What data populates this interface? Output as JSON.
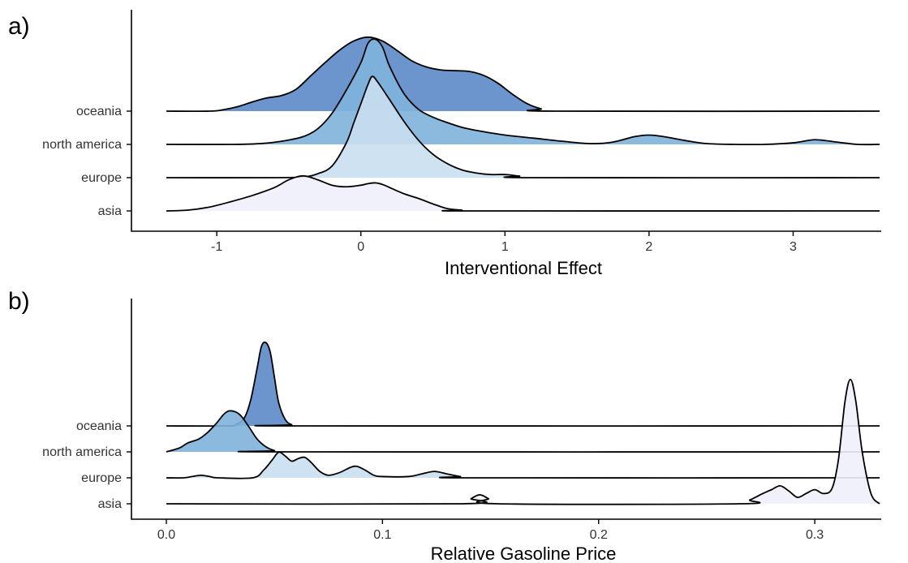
{
  "chart_data": [
    {
      "panel_label": "a)",
      "type": "ridgeline",
      "xlabel": "Interventional Effect",
      "xlim": [
        -1.35,
        3.6
      ],
      "xticks": [
        -1,
        0,
        1,
        2,
        3
      ],
      "xtick_labels": [
        "-1",
        "0",
        "1",
        "2",
        "3"
      ],
      "grid": false,
      "categories": [
        "asia",
        "europe",
        "north america",
        "oceania"
      ],
      "series": [
        {
          "category": "asia",
          "color": "#eef0fb",
          "points": [
            [
              -1.35,
              0
            ],
            [
              -1.2,
              0.01
            ],
            [
              -1.05,
              0.05
            ],
            [
              -0.9,
              0.12
            ],
            [
              -0.75,
              0.2
            ],
            [
              -0.6,
              0.3
            ],
            [
              -0.5,
              0.4
            ],
            [
              -0.4,
              0.45
            ],
            [
              -0.3,
              0.4
            ],
            [
              -0.2,
              0.33
            ],
            [
              -0.1,
              0.31
            ],
            [
              0.0,
              0.33
            ],
            [
              0.05,
              0.35
            ],
            [
              0.1,
              0.36
            ],
            [
              0.15,
              0.34
            ],
            [
              0.2,
              0.3
            ],
            [
              0.3,
              0.22
            ],
            [
              0.4,
              0.16
            ],
            [
              0.5,
              0.09
            ],
            [
              0.6,
              0.03
            ],
            [
              0.7,
              0.01
            ],
            [
              0.8,
              0
            ],
            [
              3.6,
              0
            ]
          ]
        },
        {
          "category": "europe",
          "color": "#c9dff0",
          "points": [
            [
              -1.35,
              0
            ],
            [
              -0.6,
              0
            ],
            [
              -0.4,
              0.01
            ],
            [
              -0.3,
              0.05
            ],
            [
              -0.2,
              0.15
            ],
            [
              -0.1,
              0.45
            ],
            [
              -0.05,
              0.7
            ],
            [
              0.0,
              0.95
            ],
            [
              0.05,
              1.2
            ],
            [
              0.08,
              1.3
            ],
            [
              0.12,
              1.22
            ],
            [
              0.2,
              1.0
            ],
            [
              0.3,
              0.72
            ],
            [
              0.4,
              0.48
            ],
            [
              0.5,
              0.3
            ],
            [
              0.6,
              0.18
            ],
            [
              0.7,
              0.1
            ],
            [
              0.8,
              0.06
            ],
            [
              0.9,
              0.04
            ],
            [
              1.0,
              0.04
            ],
            [
              1.1,
              0.02
            ],
            [
              1.2,
              0
            ],
            [
              3.6,
              0
            ]
          ]
        },
        {
          "category": "north america",
          "color": "#80b3db",
          "points": [
            [
              -1.35,
              0
            ],
            [
              -0.9,
              0
            ],
            [
              -0.7,
              0.01
            ],
            [
              -0.55,
              0.04
            ],
            [
              -0.4,
              0.1
            ],
            [
              -0.3,
              0.2
            ],
            [
              -0.2,
              0.4
            ],
            [
              -0.1,
              0.7
            ],
            [
              0.0,
              1.05
            ],
            [
              0.05,
              1.3
            ],
            [
              0.1,
              1.35
            ],
            [
              0.15,
              1.25
            ],
            [
              0.2,
              1.0
            ],
            [
              0.3,
              0.65
            ],
            [
              0.4,
              0.45
            ],
            [
              0.5,
              0.35
            ],
            [
              0.6,
              0.28
            ],
            [
              0.7,
              0.22
            ],
            [
              0.8,
              0.18
            ],
            [
              1.0,
              0.12
            ],
            [
              1.2,
              0.08
            ],
            [
              1.4,
              0.04
            ],
            [
              1.6,
              0.01
            ],
            [
              1.75,
              0.03
            ],
            [
              1.9,
              0.1
            ],
            [
              2.0,
              0.12
            ],
            [
              2.1,
              0.1
            ],
            [
              2.25,
              0.05
            ],
            [
              2.4,
              0.01
            ],
            [
              2.6,
              0
            ],
            [
              2.8,
              0
            ],
            [
              3.0,
              0.02
            ],
            [
              3.15,
              0.06
            ],
            [
              3.3,
              0.03
            ],
            [
              3.45,
              0
            ],
            [
              3.6,
              0
            ]
          ]
        },
        {
          "category": "oceania",
          "color": "#5b8ac6",
          "points": [
            [
              -1.35,
              0
            ],
            [
              -1.05,
              0
            ],
            [
              -0.95,
              0.02
            ],
            [
              -0.85,
              0.06
            ],
            [
              -0.75,
              0.12
            ],
            [
              -0.65,
              0.17
            ],
            [
              -0.55,
              0.2
            ],
            [
              -0.45,
              0.28
            ],
            [
              -0.35,
              0.45
            ],
            [
              -0.25,
              0.62
            ],
            [
              -0.15,
              0.78
            ],
            [
              -0.05,
              0.9
            ],
            [
              0.05,
              0.95
            ],
            [
              0.15,
              0.9
            ],
            [
              0.25,
              0.78
            ],
            [
              0.35,
              0.65
            ],
            [
              0.45,
              0.57
            ],
            [
              0.55,
              0.53
            ],
            [
              0.65,
              0.52
            ],
            [
              0.75,
              0.51
            ],
            [
              0.85,
              0.46
            ],
            [
              0.95,
              0.36
            ],
            [
              1.05,
              0.22
            ],
            [
              1.15,
              0.1
            ],
            [
              1.25,
              0.03
            ],
            [
              1.35,
              0
            ],
            [
              3.6,
              0
            ]
          ]
        }
      ]
    },
    {
      "panel_label": "b)",
      "type": "ridgeline",
      "xlabel": "Relative Gasoline Price",
      "xlim": [
        0.0,
        0.33
      ],
      "xticks": [
        0.0,
        0.1,
        0.2,
        0.3
      ],
      "xtick_labels": [
        "0.0",
        "0.1",
        "0.2",
        "0.3"
      ],
      "grid": false,
      "categories": [
        "asia",
        "europe",
        "north america",
        "oceania"
      ],
      "series": [
        {
          "category": "asia",
          "color": "#eef0fb",
          "points": [
            [
              0.0,
              0
            ],
            [
              0.137,
              0
            ],
            [
              0.141,
              0.04
            ],
            [
              0.145,
              0.07
            ],
            [
              0.149,
              0.04
            ],
            [
              0.153,
              0
            ],
            [
              0.265,
              0
            ],
            [
              0.27,
              0.03
            ],
            [
              0.276,
              0.08
            ],
            [
              0.28,
              0.11
            ],
            [
              0.284,
              0.14
            ],
            [
              0.288,
              0.1
            ],
            [
              0.292,
              0.05
            ],
            [
              0.296,
              0.08
            ],
            [
              0.3,
              0.11
            ],
            [
              0.304,
              0.08
            ],
            [
              0.308,
              0.12
            ],
            [
              0.311,
              0.35
            ],
            [
              0.314,
              0.8
            ],
            [
              0.3165,
              0.97
            ],
            [
              0.319,
              0.8
            ],
            [
              0.322,
              0.4
            ],
            [
              0.326,
              0.08
            ],
            [
              0.33,
              0
            ]
          ]
        },
        {
          "category": "europe",
          "color": "#c9dff0",
          "points": [
            [
              0.0,
              0
            ],
            [
              0.008,
              0
            ],
            [
              0.012,
              0.01
            ],
            [
              0.016,
              0.02
            ],
            [
              0.02,
              0.01
            ],
            [
              0.024,
              0
            ],
            [
              0.04,
              0
            ],
            [
              0.045,
              0.06
            ],
            [
              0.049,
              0.14
            ],
            [
              0.052,
              0.2
            ],
            [
              0.055,
              0.17
            ],
            [
              0.058,
              0.13
            ],
            [
              0.061,
              0.15
            ],
            [
              0.064,
              0.16
            ],
            [
              0.067,
              0.12
            ],
            [
              0.071,
              0.05
            ],
            [
              0.075,
              0.02
            ],
            [
              0.08,
              0.04
            ],
            [
              0.085,
              0.08
            ],
            [
              0.088,
              0.09
            ],
            [
              0.092,
              0.06
            ],
            [
              0.096,
              0.02
            ],
            [
              0.1,
              0.01
            ],
            [
              0.112,
              0.01
            ],
            [
              0.118,
              0.03
            ],
            [
              0.124,
              0.05
            ],
            [
              0.13,
              0.03
            ],
            [
              0.136,
              0.01
            ],
            [
              0.142,
              0
            ],
            [
              0.33,
              0
            ]
          ]
        },
        {
          "category": "north america",
          "color": "#80b3db",
          "points": [
            [
              0.0,
              0
            ],
            [
              0.006,
              0.03
            ],
            [
              0.01,
              0.07
            ],
            [
              0.015,
              0.1
            ],
            [
              0.019,
              0.15
            ],
            [
              0.023,
              0.22
            ],
            [
              0.027,
              0.3
            ],
            [
              0.03,
              0.32
            ],
            [
              0.034,
              0.29
            ],
            [
              0.038,
              0.2
            ],
            [
              0.042,
              0.1
            ],
            [
              0.046,
              0.04
            ],
            [
              0.05,
              0.01
            ],
            [
              0.055,
              0
            ],
            [
              0.33,
              0
            ]
          ]
        },
        {
          "category": "oceania",
          "color": "#5b8ac6",
          "points": [
            [
              0.0,
              0
            ],
            [
              0.028,
              0
            ],
            [
              0.032,
              0.01
            ],
            [
              0.036,
              0.06
            ],
            [
              0.039,
              0.2
            ],
            [
              0.042,
              0.45
            ],
            [
              0.044,
              0.62
            ],
            [
              0.046,
              0.65
            ],
            [
              0.048,
              0.58
            ],
            [
              0.05,
              0.38
            ],
            [
              0.052,
              0.18
            ],
            [
              0.055,
              0.05
            ],
            [
              0.058,
              0.01
            ],
            [
              0.062,
              0
            ],
            [
              0.33,
              0
            ]
          ]
        }
      ]
    }
  ]
}
